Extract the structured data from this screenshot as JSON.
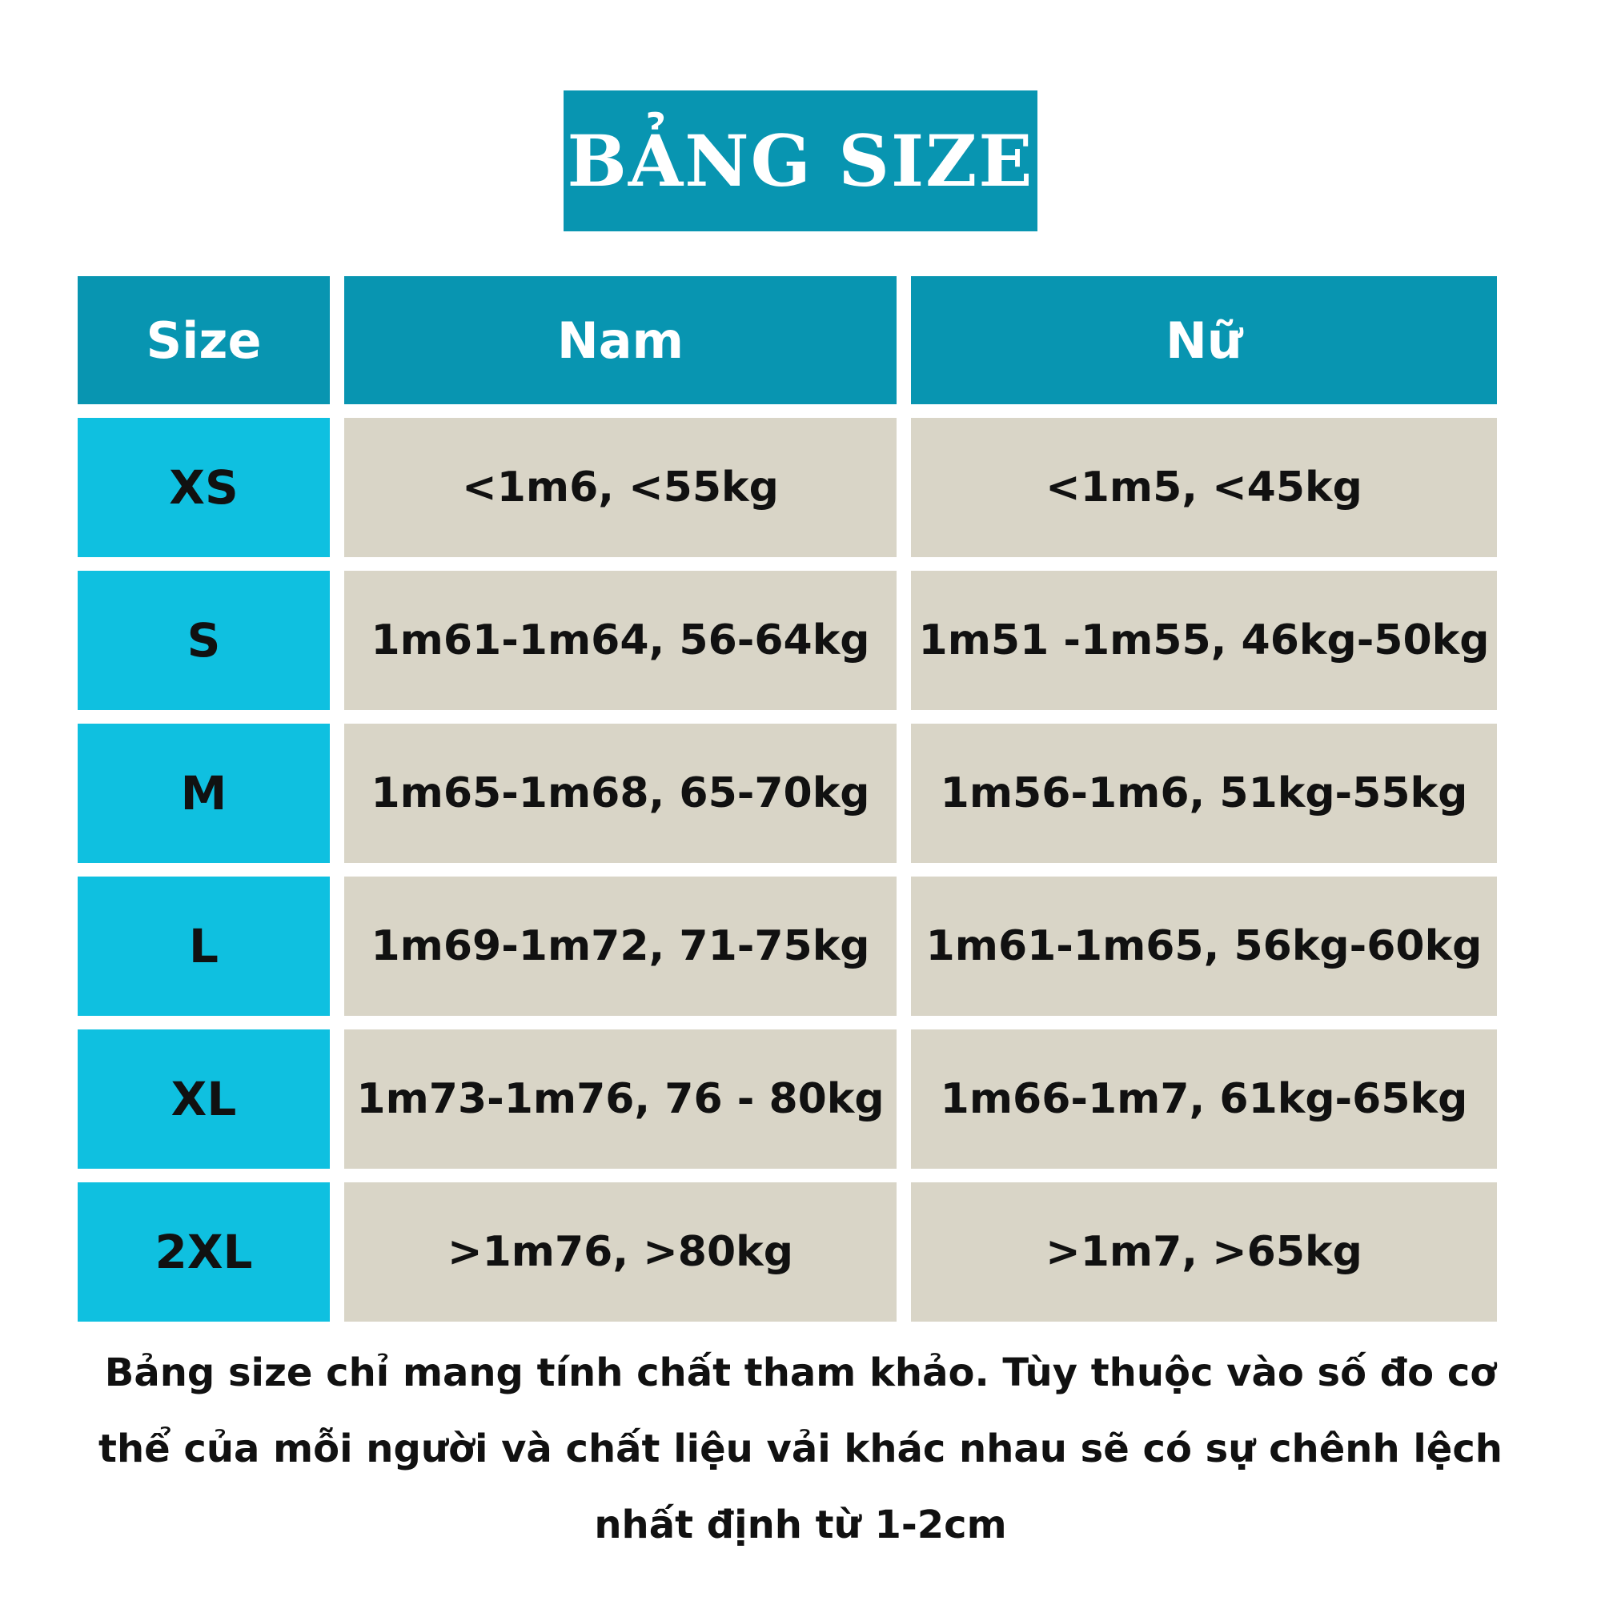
{
  "title": "BẢNG SIZE",
  "colors": {
    "teal": "#0895B1",
    "cyan": "#0FC0E0",
    "beige": "#D9D5C7",
    "text": "#111111",
    "header_text": "#FFFFFF"
  },
  "table": {
    "headers": [
      "Size",
      "Nam",
      "Nữ"
    ],
    "rows": [
      {
        "size": "XS",
        "nam": "<1m6, <55kg",
        "nu": "<1m5, <45kg"
      },
      {
        "size": "S",
        "nam": "1m61-1m64, 56-64kg",
        "nu": "1m51 -1m55, 46kg-50kg"
      },
      {
        "size": "M",
        "nam": "1m65-1m68, 65-70kg",
        "nu": "1m56-1m6, 51kg-55kg"
      },
      {
        "size": "L",
        "nam": "1m69-1m72, 71-75kg",
        "nu": "1m61-1m65, 56kg-60kg"
      },
      {
        "size": "XL",
        "nam": "1m73-1m76, 76 - 80kg",
        "nu": "1m66-1m7, 61kg-65kg"
      },
      {
        "size": "2XL",
        "nam": ">1m76, >80kg",
        "nu": ">1m7, >65kg"
      }
    ]
  },
  "footer": {
    "line1": "Bảng size chỉ mang tính chất tham khảo. Tùy thuộc vào số đo cơ",
    "line2": "thể của mỗi người và chất liệu vải khác nhau sẽ có sự chênh lệch",
    "line3": "nhất định từ 1-2cm"
  }
}
